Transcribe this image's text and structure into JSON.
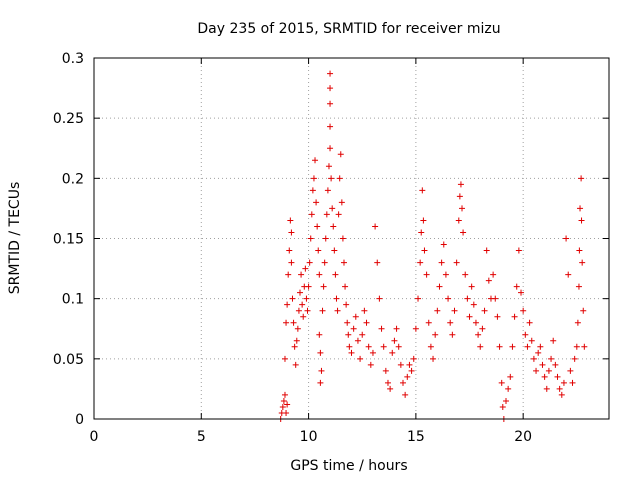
{
  "chart_data": {
    "type": "scatter",
    "title": "Day 235 of 2015, SRMTID for receiver mizu",
    "xlabel": "GPS time / hours",
    "ylabel": "SRMTID / TECUs",
    "xlim": [
      0,
      24
    ],
    "ylim": [
      0,
      0.3
    ],
    "xticks": [
      0,
      5,
      10,
      15,
      20
    ],
    "yticks": [
      0,
      0.05,
      0.1,
      0.15,
      0.2,
      0.25,
      0.3
    ],
    "xtick_labels": [
      "0",
      "5",
      "10",
      "15",
      "20"
    ],
    "ytick_labels": [
      "0",
      "0.05",
      "0.1",
      "0.15",
      "0.2",
      "0.25",
      "0.3"
    ],
    "grid": true,
    "marker": "+",
    "color": "#e00000",
    "series": [
      {
        "name": "SRMTID",
        "points": [
          [
            8.7,
            0.0
          ],
          [
            8.75,
            0.005
          ],
          [
            8.8,
            0.01
          ],
          [
            8.85,
            0.015
          ],
          [
            8.9,
            0.02
          ],
          [
            8.95,
            0.005
          ],
          [
            9.0,
            0.012
          ],
          [
            8.9,
            0.05
          ],
          [
            8.95,
            0.08
          ],
          [
            9.0,
            0.095
          ],
          [
            9.05,
            0.12
          ],
          [
            9.1,
            0.14
          ],
          [
            9.15,
            0.165
          ],
          [
            9.2,
            0.155
          ],
          [
            9.2,
            0.13
          ],
          [
            9.25,
            0.1
          ],
          [
            9.3,
            0.08
          ],
          [
            9.35,
            0.06
          ],
          [
            9.4,
            0.045
          ],
          [
            9.45,
            0.065
          ],
          [
            9.5,
            0.075
          ],
          [
            9.55,
            0.09
          ],
          [
            9.6,
            0.105
          ],
          [
            9.65,
            0.12
          ],
          [
            9.7,
            0.095
          ],
          [
            9.75,
            0.085
          ],
          [
            9.8,
            0.11
          ],
          [
            9.85,
            0.125
          ],
          [
            9.9,
            0.1
          ],
          [
            9.95,
            0.09
          ],
          [
            10.0,
            0.11
          ],
          [
            10.05,
            0.13
          ],
          [
            10.1,
            0.15
          ],
          [
            10.15,
            0.17
          ],
          [
            10.2,
            0.19
          ],
          [
            10.25,
            0.2
          ],
          [
            10.3,
            0.215
          ],
          [
            10.35,
            0.18
          ],
          [
            10.4,
            0.16
          ],
          [
            10.45,
            0.14
          ],
          [
            10.5,
            0.12
          ],
          [
            10.5,
            0.07
          ],
          [
            10.55,
            0.055
          ],
          [
            10.6,
            0.04
          ],
          [
            10.55,
            0.03
          ],
          [
            10.65,
            0.09
          ],
          [
            10.7,
            0.11
          ],
          [
            10.75,
            0.13
          ],
          [
            10.8,
            0.15
          ],
          [
            10.85,
            0.17
          ],
          [
            10.9,
            0.19
          ],
          [
            10.95,
            0.21
          ],
          [
            11.0,
            0.225
          ],
          [
            11.0,
            0.243
          ],
          [
            11.0,
            0.262
          ],
          [
            11.0,
            0.275
          ],
          [
            11.0,
            0.287
          ],
          [
            11.05,
            0.2
          ],
          [
            11.1,
            0.175
          ],
          [
            11.15,
            0.16
          ],
          [
            11.2,
            0.14
          ],
          [
            11.25,
            0.12
          ],
          [
            11.3,
            0.1
          ],
          [
            11.35,
            0.09
          ],
          [
            11.4,
            0.17
          ],
          [
            11.45,
            0.2
          ],
          [
            11.5,
            0.22
          ],
          [
            11.55,
            0.18
          ],
          [
            11.6,
            0.15
          ],
          [
            11.65,
            0.13
          ],
          [
            11.7,
            0.11
          ],
          [
            11.75,
            0.095
          ],
          [
            11.8,
            0.08
          ],
          [
            11.85,
            0.07
          ],
          [
            11.9,
            0.06
          ],
          [
            12.0,
            0.055
          ],
          [
            12.1,
            0.075
          ],
          [
            12.2,
            0.085
          ],
          [
            12.3,
            0.065
          ],
          [
            12.4,
            0.05
          ],
          [
            12.5,
            0.07
          ],
          [
            12.6,
            0.09
          ],
          [
            12.7,
            0.08
          ],
          [
            12.8,
            0.06
          ],
          [
            12.9,
            0.045
          ],
          [
            13.0,
            0.055
          ],
          [
            13.1,
            0.16
          ],
          [
            13.2,
            0.13
          ],
          [
            13.3,
            0.1
          ],
          [
            13.4,
            0.075
          ],
          [
            13.5,
            0.06
          ],
          [
            13.6,
            0.04
          ],
          [
            13.7,
            0.03
          ],
          [
            13.8,
            0.025
          ],
          [
            13.9,
            0.055
          ],
          [
            14.0,
            0.065
          ],
          [
            14.1,
            0.075
          ],
          [
            14.2,
            0.06
          ],
          [
            14.3,
            0.045
          ],
          [
            14.4,
            0.03
          ],
          [
            14.5,
            0.02
          ],
          [
            14.6,
            0.035
          ],
          [
            14.7,
            0.045
          ],
          [
            14.8,
            0.04
          ],
          [
            14.9,
            0.05
          ],
          [
            15.0,
            0.075
          ],
          [
            15.1,
            0.1
          ],
          [
            15.2,
            0.13
          ],
          [
            15.25,
            0.155
          ],
          [
            15.3,
            0.19
          ],
          [
            15.35,
            0.165
          ],
          [
            15.4,
            0.14
          ],
          [
            15.5,
            0.12
          ],
          [
            15.6,
            0.08
          ],
          [
            15.7,
            0.06
          ],
          [
            15.8,
            0.05
          ],
          [
            15.9,
            0.07
          ],
          [
            16.0,
            0.09
          ],
          [
            16.1,
            0.11
          ],
          [
            16.2,
            0.13
          ],
          [
            16.3,
            0.145
          ],
          [
            16.4,
            0.12
          ],
          [
            16.5,
            0.1
          ],
          [
            16.6,
            0.08
          ],
          [
            16.7,
            0.07
          ],
          [
            16.8,
            0.09
          ],
          [
            16.9,
            0.13
          ],
          [
            17.0,
            0.165
          ],
          [
            17.05,
            0.185
          ],
          [
            17.1,
            0.195
          ],
          [
            17.15,
            0.175
          ],
          [
            17.2,
            0.155
          ],
          [
            17.3,
            0.12
          ],
          [
            17.4,
            0.1
          ],
          [
            17.5,
            0.085
          ],
          [
            17.6,
            0.11
          ],
          [
            17.7,
            0.095
          ],
          [
            17.8,
            0.08
          ],
          [
            17.9,
            0.07
          ],
          [
            18.0,
            0.06
          ],
          [
            18.1,
            0.075
          ],
          [
            18.2,
            0.09
          ],
          [
            18.3,
            0.14
          ],
          [
            18.4,
            0.115
          ],
          [
            18.5,
            0.1
          ],
          [
            18.6,
            0.12
          ],
          [
            18.7,
            0.1
          ],
          [
            18.8,
            0.085
          ],
          [
            18.9,
            0.06
          ],
          [
            19.0,
            0.03
          ],
          [
            19.05,
            0.01
          ],
          [
            19.1,
            0.0
          ],
          [
            19.2,
            0.015
          ],
          [
            19.3,
            0.025
          ],
          [
            19.4,
            0.035
          ],
          [
            19.5,
            0.06
          ],
          [
            19.6,
            0.085
          ],
          [
            19.7,
            0.11
          ],
          [
            19.8,
            0.14
          ],
          [
            19.9,
            0.105
          ],
          [
            20.0,
            0.09
          ],
          [
            20.1,
            0.07
          ],
          [
            20.2,
            0.06
          ],
          [
            20.3,
            0.08
          ],
          [
            20.4,
            0.065
          ],
          [
            20.5,
            0.05
          ],
          [
            20.6,
            0.04
          ],
          [
            20.7,
            0.055
          ],
          [
            20.8,
            0.06
          ],
          [
            20.9,
            0.045
          ],
          [
            21.0,
            0.035
          ],
          [
            21.1,
            0.025
          ],
          [
            21.2,
            0.04
          ],
          [
            21.3,
            0.05
          ],
          [
            21.4,
            0.065
          ],
          [
            21.5,
            0.045
          ],
          [
            21.6,
            0.035
          ],
          [
            21.7,
            0.025
          ],
          [
            21.8,
            0.02
          ],
          [
            21.9,
            0.03
          ],
          [
            22.0,
            0.15
          ],
          [
            22.1,
            0.12
          ],
          [
            22.2,
            0.04
          ],
          [
            22.3,
            0.03
          ],
          [
            22.4,
            0.05
          ],
          [
            22.5,
            0.06
          ],
          [
            22.55,
            0.08
          ],
          [
            22.6,
            0.11
          ],
          [
            22.62,
            0.14
          ],
          [
            22.65,
            0.175
          ],
          [
            22.7,
            0.2
          ],
          [
            22.72,
            0.165
          ],
          [
            22.75,
            0.13
          ],
          [
            22.8,
            0.09
          ],
          [
            22.85,
            0.06
          ]
        ]
      }
    ]
  }
}
